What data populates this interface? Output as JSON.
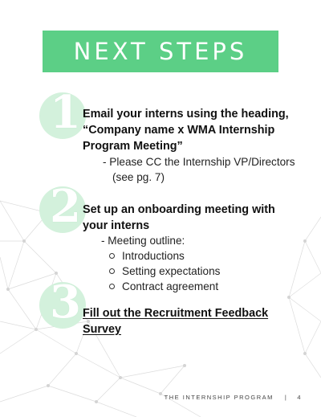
{
  "theme": {
    "accent": "#5ccf86",
    "badge_fill": "#d3f1dc",
    "network_line": "#dcdcdc"
  },
  "banner": {
    "title": "NEXT STEPS"
  },
  "steps": [
    {
      "number": "1",
      "heading_lines": [
        "Email your interns using the heading,",
        "“Company name x WMA Internship",
        "Program Meeting”"
      ],
      "note_lines": [
        "- Please CC the Internship VP/Directors",
        "(see pg. 7)"
      ]
    },
    {
      "number": "2",
      "heading_lines": [
        "Set up an onboarding meeting with",
        "your interns"
      ],
      "note_lines": [
        "- Meeting outline:"
      ],
      "bullets": [
        "Introductions",
        "Setting expectations",
        "Contract agreement"
      ]
    },
    {
      "number": "3",
      "heading_lines": [
        "Fill out the Recruitment Feedback",
        "Survey"
      ]
    }
  ],
  "footer": {
    "program": "THE INTERNSHIP PROGRAM",
    "separator": "|",
    "page_number": "4"
  }
}
